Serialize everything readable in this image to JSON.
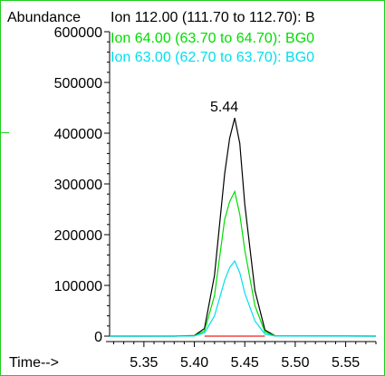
{
  "chart_data": {
    "type": "line",
    "ylabel": "Abundance",
    "xlabel": "Time-->",
    "xlim": [
      5.316,
      5.58
    ],
    "ylim": [
      0,
      600000
    ],
    "x_ticks": [
      "5.35",
      "5.40",
      "5.45",
      "5.50",
      "5.55"
    ],
    "y_ticks": [
      "0",
      "100000",
      "200000",
      "300000",
      "400000",
      "500000",
      "600000"
    ],
    "peak_label": "5.44",
    "peak_time": 5.44,
    "series": [
      {
        "name": "Ion 112.00 (111.70 to 112.70): B",
        "color": "#000000",
        "x": [
          5.316,
          5.38,
          5.4,
          5.41,
          5.42,
          5.43,
          5.435,
          5.44,
          5.445,
          5.45,
          5.46,
          5.47,
          5.48,
          5.58
        ],
        "y": [
          0,
          0,
          1000,
          15000,
          120000,
          320000,
          390000,
          430000,
          380000,
          260000,
          90000,
          12000,
          500,
          0
        ]
      },
      {
        "name": "Ion  64.00 (63.70 to 64.70): BG0",
        "color": "#00dd00",
        "x": [
          5.316,
          5.38,
          5.4,
          5.41,
          5.42,
          5.43,
          5.435,
          5.44,
          5.445,
          5.45,
          5.46,
          5.47,
          5.48,
          5.58
        ],
        "y": [
          0,
          0,
          500,
          10000,
          80000,
          230000,
          265000,
          285000,
          240000,
          170000,
          60000,
          8000,
          300,
          0
        ]
      },
      {
        "name": "Ion  63.00 (62.70 to 63.70): BG0",
        "color": "#00e0ee",
        "x": [
          5.316,
          5.38,
          5.4,
          5.41,
          5.42,
          5.43,
          5.435,
          5.44,
          5.445,
          5.45,
          5.46,
          5.47,
          5.48,
          5.58
        ],
        "y": [
          0,
          0,
          300,
          6000,
          40000,
          110000,
          135000,
          148000,
          125000,
          85000,
          30000,
          4000,
          200,
          0
        ]
      },
      {
        "name": "",
        "color": "#ee2222",
        "x": [
          5.41,
          5.47
        ],
        "y": [
          0,
          0
        ]
      }
    ]
  }
}
